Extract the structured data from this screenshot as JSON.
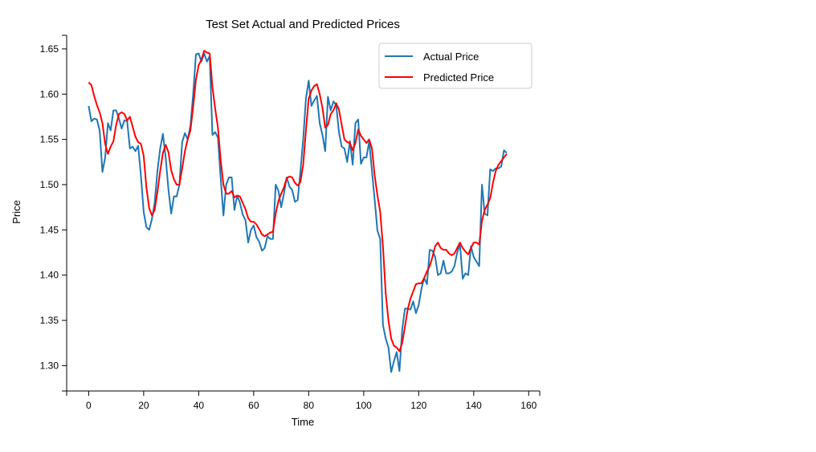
{
  "chart_data": {
    "type": "line",
    "title": "Test Set Actual and Predicted Prices",
    "xlabel": "Time",
    "ylabel": "Price",
    "xlim": [
      -8,
      164
    ],
    "ylim": [
      1.272,
      1.665
    ],
    "xticks": [
      0,
      20,
      40,
      60,
      80,
      100,
      120,
      140,
      160
    ],
    "yticks": [
      1.3,
      1.35,
      1.4,
      1.45,
      1.5,
      1.55,
      1.6,
      1.65
    ],
    "ytick_labels": [
      "1.30",
      "1.35",
      "1.40",
      "1.45",
      "1.50",
      "1.55",
      "1.60",
      "1.65"
    ],
    "grid": false,
    "legend_position": "top-right",
    "series": [
      {
        "name": "Actual Price",
        "color": "#1f77b4",
        "points": [
          [
            0,
            1.587
          ],
          [
            1,
            1.57
          ],
          [
            2,
            1.573
          ],
          [
            3,
            1.572
          ],
          [
            4,
            1.56
          ],
          [
            5,
            1.514
          ],
          [
            6,
            1.53
          ],
          [
            7,
            1.568
          ],
          [
            8,
            1.56
          ],
          [
            9,
            1.582
          ],
          [
            10,
            1.582
          ],
          [
            11,
            1.573
          ],
          [
            12,
            1.562
          ],
          [
            13,
            1.571
          ],
          [
            14,
            1.57
          ],
          [
            15,
            1.54
          ],
          [
            16,
            1.542
          ],
          [
            17,
            1.537
          ],
          [
            18,
            1.543
          ],
          [
            19,
            1.51
          ],
          [
            20,
            1.47
          ],
          [
            21,
            1.453
          ],
          [
            22,
            1.45
          ],
          [
            23,
            1.462
          ],
          [
            24,
            1.48
          ],
          [
            25,
            1.515
          ],
          [
            26,
            1.54
          ],
          [
            27,
            1.556
          ],
          [
            28,
            1.53
          ],
          [
            29,
            1.495
          ],
          [
            30,
            1.468
          ],
          [
            31,
            1.487
          ],
          [
            32,
            1.487
          ],
          [
            33,
            1.5
          ],
          [
            34,
            1.547
          ],
          [
            35,
            1.557
          ],
          [
            36,
            1.55
          ],
          [
            37,
            1.565
          ],
          [
            38,
            1.6
          ],
          [
            39,
            1.644
          ],
          [
            40,
            1.645
          ],
          [
            41,
            1.636
          ],
          [
            42,
            1.645
          ],
          [
            43,
            1.636
          ],
          [
            44,
            1.642
          ],
          [
            45,
            1.555
          ],
          [
            46,
            1.558
          ],
          [
            47,
            1.552
          ],
          [
            48,
            1.507
          ],
          [
            49,
            1.466
          ],
          [
            50,
            1.5
          ],
          [
            51,
            1.508
          ],
          [
            52,
            1.508
          ],
          [
            53,
            1.472
          ],
          [
            54,
            1.488
          ],
          [
            55,
            1.48
          ],
          [
            56,
            1.467
          ],
          [
            57,
            1.461
          ],
          [
            58,
            1.436
          ],
          [
            59,
            1.45
          ],
          [
            60,
            1.455
          ],
          [
            61,
            1.442
          ],
          [
            62,
            1.437
          ],
          [
            63,
            1.427
          ],
          [
            64,
            1.43
          ],
          [
            65,
            1.443
          ],
          [
            66,
            1.44
          ],
          [
            67,
            1.44
          ],
          [
            68,
            1.5
          ],
          [
            69,
            1.493
          ],
          [
            70,
            1.475
          ],
          [
            71,
            1.49
          ],
          [
            72,
            1.508
          ],
          [
            73,
            1.498
          ],
          [
            74,
            1.494
          ],
          [
            75,
            1.481
          ],
          [
            76,
            1.483
          ],
          [
            77,
            1.515
          ],
          [
            78,
            1.55
          ],
          [
            79,
            1.595
          ],
          [
            80,
            1.615
          ],
          [
            81,
            1.587
          ],
          [
            82,
            1.593
          ],
          [
            83,
            1.598
          ],
          [
            84,
            1.568
          ],
          [
            85,
            1.555
          ],
          [
            86,
            1.537
          ],
          [
            87,
            1.597
          ],
          [
            88,
            1.582
          ],
          [
            89,
            1.592
          ],
          [
            90,
            1.588
          ],
          [
            91,
            1.558
          ],
          [
            92,
            1.542
          ],
          [
            93,
            1.54
          ],
          [
            94,
            1.525
          ],
          [
            95,
            1.548
          ],
          [
            96,
            1.522
          ],
          [
            97,
            1.568
          ],
          [
            98,
            1.572
          ],
          [
            99,
            1.523
          ],
          [
            100,
            1.53
          ],
          [
            101,
            1.53
          ],
          [
            102,
            1.548
          ],
          [
            103,
            1.515
          ],
          [
            104,
            1.483
          ],
          [
            105,
            1.449
          ],
          [
            106,
            1.44
          ],
          [
            107,
            1.345
          ],
          [
            108,
            1.33
          ],
          [
            109,
            1.32
          ],
          [
            110,
            1.293
          ],
          [
            111,
            1.305
          ],
          [
            112,
            1.315
          ],
          [
            113,
            1.294
          ],
          [
            114,
            1.34
          ],
          [
            115,
            1.363
          ],
          [
            116,
            1.363
          ],
          [
            117,
            1.362
          ],
          [
            118,
            1.371
          ],
          [
            119,
            1.358
          ],
          [
            120,
            1.367
          ],
          [
            121,
            1.385
          ],
          [
            122,
            1.397
          ],
          [
            123,
            1.39
          ],
          [
            124,
            1.428
          ],
          [
            125,
            1.427
          ],
          [
            126,
            1.42
          ],
          [
            127,
            1.4
          ],
          [
            128,
            1.402
          ],
          [
            129,
            1.416
          ],
          [
            130,
            1.402
          ],
          [
            131,
            1.402
          ],
          [
            132,
            1.404
          ],
          [
            133,
            1.41
          ],
          [
            134,
            1.425
          ],
          [
            135,
            1.434
          ],
          [
            136,
            1.396
          ],
          [
            137,
            1.402
          ],
          [
            138,
            1.4
          ],
          [
            139,
            1.432
          ],
          [
            140,
            1.42
          ],
          [
            141,
            1.415
          ],
          [
            142,
            1.41
          ],
          [
            143,
            1.5
          ],
          [
            144,
            1.468
          ],
          [
            145,
            1.466
          ],
          [
            146,
            1.517
          ],
          [
            147,
            1.515
          ],
          [
            148,
            1.518
          ],
          [
            149,
            1.518
          ],
          [
            150,
            1.52
          ],
          [
            151,
            1.538
          ],
          [
            152,
            1.535
          ]
        ]
      },
      {
        "name": "Predicted Price",
        "color": "#ff0000",
        "points": [
          [
            0,
            1.613
          ],
          [
            1,
            1.61
          ],
          [
            2,
            1.598
          ],
          [
            3,
            1.588
          ],
          [
            4,
            1.58
          ],
          [
            5,
            1.568
          ],
          [
            6,
            1.545
          ],
          [
            7,
            1.534
          ],
          [
            8,
            1.542
          ],
          [
            9,
            1.548
          ],
          [
            10,
            1.566
          ],
          [
            11,
            1.578
          ],
          [
            12,
            1.58
          ],
          [
            13,
            1.578
          ],
          [
            14,
            1.571
          ],
          [
            15,
            1.575
          ],
          [
            16,
            1.564
          ],
          [
            17,
            1.553
          ],
          [
            18,
            1.547
          ],
          [
            19,
            1.545
          ],
          [
            20,
            1.532
          ],
          [
            21,
            1.497
          ],
          [
            22,
            1.474
          ],
          [
            23,
            1.466
          ],
          [
            24,
            1.472
          ],
          [
            25,
            1.492
          ],
          [
            26,
            1.515
          ],
          [
            27,
            1.535
          ],
          [
            28,
            1.544
          ],
          [
            29,
            1.536
          ],
          [
            30,
            1.516
          ],
          [
            31,
            1.506
          ],
          [
            32,
            1.5
          ],
          [
            33,
            1.5
          ],
          [
            34,
            1.518
          ],
          [
            35,
            1.537
          ],
          [
            36,
            1.55
          ],
          [
            37,
            1.56
          ],
          [
            38,
            1.586
          ],
          [
            39,
            1.616
          ],
          [
            40,
            1.632
          ],
          [
            41,
            1.638
          ],
          [
            42,
            1.648
          ],
          [
            43,
            1.646
          ],
          [
            44,
            1.645
          ],
          [
            45,
            1.608
          ],
          [
            46,
            1.584
          ],
          [
            47,
            1.563
          ],
          [
            48,
            1.527
          ],
          [
            49,
            1.5
          ],
          [
            50,
            1.49
          ],
          [
            51,
            1.49
          ],
          [
            52,
            1.493
          ],
          [
            53,
            1.486
          ],
          [
            54,
            1.488
          ],
          [
            55,
            1.487
          ],
          [
            56,
            1.48
          ],
          [
            57,
            1.473
          ],
          [
            58,
            1.463
          ],
          [
            59,
            1.459
          ],
          [
            60,
            1.459
          ],
          [
            61,
            1.456
          ],
          [
            62,
            1.451
          ],
          [
            63,
            1.445
          ],
          [
            64,
            1.443
          ],
          [
            65,
            1.445
          ],
          [
            66,
            1.447
          ],
          [
            67,
            1.448
          ],
          [
            68,
            1.468
          ],
          [
            69,
            1.482
          ],
          [
            70,
            1.49
          ],
          [
            71,
            1.497
          ],
          [
            72,
            1.507
          ],
          [
            73,
            1.509
          ],
          [
            74,
            1.508
          ],
          [
            75,
            1.502
          ],
          [
            76,
            1.499
          ],
          [
            77,
            1.503
          ],
          [
            78,
            1.522
          ],
          [
            79,
            1.56
          ],
          [
            80,
            1.595
          ],
          [
            81,
            1.604
          ],
          [
            82,
            1.609
          ],
          [
            83,
            1.611
          ],
          [
            84,
            1.6
          ],
          [
            85,
            1.585
          ],
          [
            86,
            1.563
          ],
          [
            87,
            1.566
          ],
          [
            88,
            1.578
          ],
          [
            89,
            1.582
          ],
          [
            90,
            1.59
          ],
          [
            91,
            1.583
          ],
          [
            92,
            1.566
          ],
          [
            93,
            1.55
          ],
          [
            94,
            1.547
          ],
          [
            95,
            1.546
          ],
          [
            96,
            1.538
          ],
          [
            97,
            1.546
          ],
          [
            98,
            1.561
          ],
          [
            99,
            1.554
          ],
          [
            100,
            1.55
          ],
          [
            101,
            1.546
          ],
          [
            102,
            1.55
          ],
          [
            103,
            1.54
          ],
          [
            104,
            1.51
          ],
          [
            105,
            1.488
          ],
          [
            106,
            1.47
          ],
          [
            107,
            1.432
          ],
          [
            108,
            1.38
          ],
          [
            109,
            1.35
          ],
          [
            110,
            1.33
          ],
          [
            111,
            1.322
          ],
          [
            112,
            1.32
          ],
          [
            113,
            1.316
          ],
          [
            114,
            1.325
          ],
          [
            115,
            1.343
          ],
          [
            116,
            1.362
          ],
          [
            117,
            1.374
          ],
          [
            118,
            1.382
          ],
          [
            119,
            1.39
          ],
          [
            120,
            1.391
          ],
          [
            121,
            1.391
          ],
          [
            122,
            1.397
          ],
          [
            123,
            1.404
          ],
          [
            124,
            1.41
          ],
          [
            125,
            1.42
          ],
          [
            126,
            1.432
          ],
          [
            127,
            1.436
          ],
          [
            128,
            1.43
          ],
          [
            129,
            1.428
          ],
          [
            130,
            1.428
          ],
          [
            131,
            1.424
          ],
          [
            132,
            1.422
          ],
          [
            133,
            1.424
          ],
          [
            134,
            1.43
          ],
          [
            135,
            1.436
          ],
          [
            136,
            1.43
          ],
          [
            137,
            1.426
          ],
          [
            138,
            1.423
          ],
          [
            139,
            1.43
          ],
          [
            140,
            1.436
          ],
          [
            141,
            1.436
          ],
          [
            142,
            1.434
          ],
          [
            143,
            1.46
          ],
          [
            144,
            1.472
          ],
          [
            145,
            1.478
          ],
          [
            146,
            1.485
          ],
          [
            147,
            1.502
          ],
          [
            148,
            1.515
          ],
          [
            149,
            1.522
          ],
          [
            150,
            1.526
          ],
          [
            151,
            1.53
          ],
          [
            152,
            1.534
          ]
        ]
      }
    ]
  }
}
